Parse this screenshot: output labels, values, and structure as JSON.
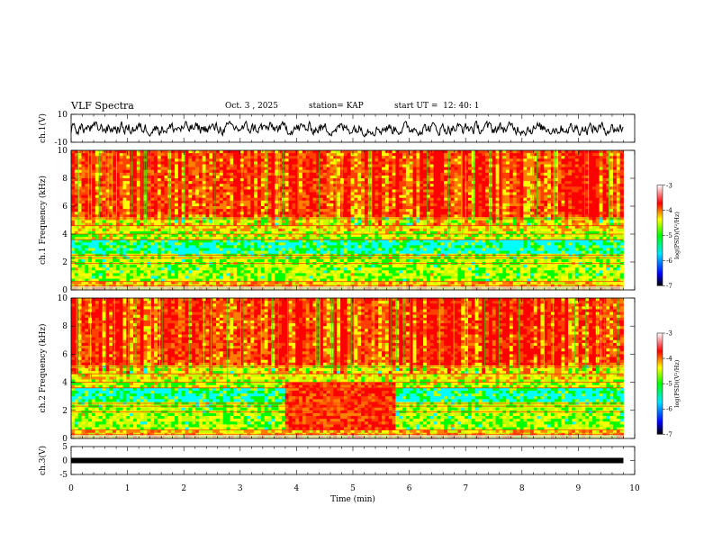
{
  "header": {
    "title": "VLF Spectra",
    "date": "Oct. 3 , 2025",
    "station": "station= KAP",
    "start": "start UT =  12: 40: 1"
  },
  "chart_data": [
    {
      "type": "line",
      "panel": "ch1-waveform",
      "ylabel": "ch.1(V)",
      "ylim": [
        -10,
        10
      ],
      "yticks": [
        "10",
        "-10"
      ],
      "xlim": [
        0,
        10
      ],
      "description_values": "noisy waveform between about -5 and 4 V"
    },
    {
      "type": "heatmap",
      "panel": "ch1-spectrogram",
      "ylabel": "ch.1 Frequency (kHz)",
      "ylim": [
        0,
        10
      ],
      "yticks": [
        "0",
        "2",
        "4",
        "6",
        "8",
        "10"
      ],
      "xlim": [
        0,
        10
      ],
      "colorbar": {
        "label": "log(PSD)(V²/Hz)",
        "ticks": [
          "-3",
          "-4",
          "-5",
          "-6",
          "-7"
        ],
        "range": [
          -7,
          -3
        ]
      }
    },
    {
      "type": "heatmap",
      "panel": "ch2-spectrogram",
      "ylabel": "ch.2 Frequency (kHz)",
      "ylim": [
        0,
        10
      ],
      "yticks": [
        "0",
        "2",
        "4",
        "6",
        "8",
        "10"
      ],
      "xlim": [
        0,
        10
      ],
      "event": {
        "start_min": 3.8,
        "end_min": 5.75
      },
      "colorbar": {
        "label": "log(PSD)(V²/Hz)",
        "ticks": [
          "-3",
          "-4",
          "-5",
          "-6",
          "-7"
        ],
        "range": [
          -7,
          -3
        ]
      }
    },
    {
      "type": "line",
      "panel": "ch3-waveform",
      "ylabel": "ch.3(V)",
      "ylim": [
        -5,
        5
      ],
      "yticks": [
        "5",
        "0",
        "-5"
      ],
      "xlim": [
        0,
        10
      ],
      "level": 0
    }
  ],
  "xaxis": {
    "label": "Time (min)",
    "ticks": [
      "0",
      "1",
      "2",
      "3",
      "4",
      "5",
      "6",
      "7",
      "8",
      "9",
      "10"
    ]
  }
}
